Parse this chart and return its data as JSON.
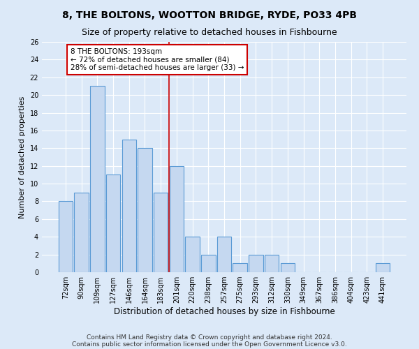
{
  "title": "8, THE BOLTONS, WOOTTON BRIDGE, RYDE, PO33 4PB",
  "subtitle": "Size of property relative to detached houses in Fishbourne",
  "xlabel": "Distribution of detached houses by size in Fishbourne",
  "ylabel": "Number of detached properties",
  "categories": [
    "72sqm",
    "90sqm",
    "109sqm",
    "127sqm",
    "146sqm",
    "164sqm",
    "183sqm",
    "201sqm",
    "220sqm",
    "238sqm",
    "257sqm",
    "275sqm",
    "293sqm",
    "312sqm",
    "330sqm",
    "349sqm",
    "367sqm",
    "386sqm",
    "404sqm",
    "423sqm",
    "441sqm"
  ],
  "values": [
    8,
    9,
    21,
    11,
    15,
    14,
    9,
    12,
    4,
    2,
    4,
    1,
    2,
    2,
    1,
    0,
    0,
    0,
    0,
    0,
    1
  ],
  "bar_color": "#c5d8f0",
  "bar_edge_color": "#5b9bd5",
  "vline_x_index": 6.5,
  "annotation_line_label": "8 THE BOLTONS: 193sqm",
  "annotation_smaller": "← 72% of detached houses are smaller (84)",
  "annotation_larger": "28% of semi-detached houses are larger (33) →",
  "annotation_box_color": "#ffffff",
  "annotation_box_edge_color": "#cc0000",
  "vline_color": "#cc0000",
  "ylim": [
    0,
    26
  ],
  "yticks": [
    0,
    2,
    4,
    6,
    8,
    10,
    12,
    14,
    16,
    18,
    20,
    22,
    24,
    26
  ],
  "bg_color": "#dce9f8",
  "grid_color": "#ffffff",
  "footer_line1": "Contains HM Land Registry data © Crown copyright and database right 2024.",
  "footer_line2": "Contains public sector information licensed under the Open Government Licence v3.0.",
  "title_fontsize": 10,
  "subtitle_fontsize": 9,
  "xlabel_fontsize": 8.5,
  "ylabel_fontsize": 8,
  "tick_fontsize": 7,
  "annot_fontsize": 7.5,
  "footer_fontsize": 6.5
}
